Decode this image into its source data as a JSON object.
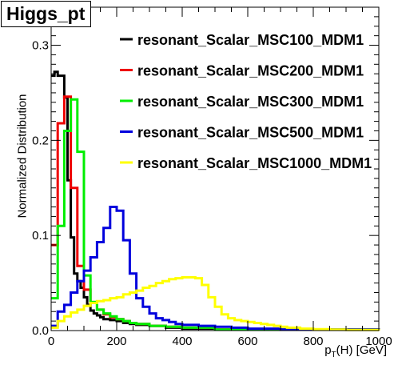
{
  "chart_data": {
    "type": "line",
    "title": "Higgs_pt",
    "xlabel": {
      "main": "p",
      "sub": "T",
      "rest": "(H) [GeV]"
    },
    "ylabel": "Normalized Distribution",
    "xlim": [
      0,
      1000
    ],
    "ylim": [
      0,
      0.34
    ],
    "x_ticks": [
      0,
      200,
      400,
      600,
      800,
      1000
    ],
    "y_ticks": [
      0.0,
      0.1,
      0.2,
      0.3
    ],
    "y_tick_labels": [
      "0.0",
      "0.1",
      "0.2",
      "0.3"
    ],
    "bin_width": 20,
    "legend_position": "top-right",
    "grid": false,
    "series": [
      {
        "name": "resonant_Scalar_MSC100_MDM1",
        "color": "#000000",
        "bins": [
          [
            0,
            0.268
          ],
          [
            10,
            0.272
          ],
          [
            20,
            0.268
          ],
          [
            40,
            0.245
          ],
          [
            50,
            0.158
          ],
          [
            60,
            0.098
          ],
          [
            70,
            0.06
          ],
          [
            80,
            0.052
          ],
          [
            90,
            0.045
          ],
          [
            100,
            0.035
          ],
          [
            110,
            0.027
          ],
          [
            120,
            0.021
          ],
          [
            130,
            0.018
          ],
          [
            140,
            0.016
          ],
          [
            150,
            0.014
          ],
          [
            160,
            0.012
          ],
          [
            180,
            0.011
          ],
          [
            200,
            0.01
          ],
          [
            220,
            0.008
          ],
          [
            240,
            0.007
          ],
          [
            260,
            0.006
          ],
          [
            300,
            0.005
          ],
          [
            350,
            0.003
          ],
          [
            400,
            0.002
          ],
          [
            500,
            0.001
          ],
          [
            1000,
            0.0
          ]
        ]
      },
      {
        "name": "resonant_Scalar_MSC200_MDM1",
        "color": "#ee0000",
        "bins": [
          [
            0,
            0.09
          ],
          [
            20,
            0.218
          ],
          [
            40,
            0.246
          ],
          [
            60,
            0.15
          ],
          [
            80,
            0.068
          ],
          [
            100,
            0.043
          ],
          [
            120,
            0.03
          ],
          [
            140,
            0.022
          ],
          [
            160,
            0.017
          ],
          [
            180,
            0.014
          ],
          [
            200,
            0.012
          ],
          [
            220,
            0.01
          ],
          [
            240,
            0.008
          ],
          [
            260,
            0.007
          ],
          [
            300,
            0.005
          ],
          [
            350,
            0.004
          ],
          [
            400,
            0.003
          ],
          [
            500,
            0.001
          ],
          [
            1000,
            0.0
          ]
        ]
      },
      {
        "name": "resonant_Scalar_MSC300_MDM1",
        "color": "#00ee00",
        "bins": [
          [
            0,
            0.034
          ],
          [
            20,
            0.11
          ],
          [
            40,
            0.21
          ],
          [
            60,
            0.243
          ],
          [
            80,
            0.188
          ],
          [
            100,
            0.058
          ],
          [
            120,
            0.03
          ],
          [
            140,
            0.022
          ],
          [
            160,
            0.018
          ],
          [
            180,
            0.015
          ],
          [
            200,
            0.012
          ],
          [
            220,
            0.01
          ],
          [
            240,
            0.008
          ],
          [
            260,
            0.007
          ],
          [
            300,
            0.005
          ],
          [
            350,
            0.004
          ],
          [
            400,
            0.003
          ],
          [
            500,
            0.001
          ],
          [
            1000,
            0.0
          ]
        ]
      },
      {
        "name": "resonant_Scalar_MSC500_MDM1",
        "color": "#0000dd",
        "bins": [
          [
            0,
            0.005
          ],
          [
            20,
            0.02
          ],
          [
            40,
            0.027
          ],
          [
            60,
            0.04
          ],
          [
            80,
            0.052
          ],
          [
            100,
            0.063
          ],
          [
            120,
            0.077
          ],
          [
            140,
            0.093
          ],
          [
            160,
            0.108
          ],
          [
            180,
            0.13
          ],
          [
            200,
            0.126
          ],
          [
            220,
            0.095
          ],
          [
            240,
            0.06
          ],
          [
            260,
            0.034
          ],
          [
            280,
            0.025
          ],
          [
            300,
            0.018
          ],
          [
            320,
            0.013
          ],
          [
            340,
            0.011
          ],
          [
            360,
            0.009
          ],
          [
            380,
            0.007
          ],
          [
            400,
            0.006
          ],
          [
            450,
            0.005
          ],
          [
            500,
            0.004
          ],
          [
            550,
            0.003
          ],
          [
            600,
            0.002
          ],
          [
            700,
            0.001
          ],
          [
            1000,
            0.0
          ]
        ]
      },
      {
        "name": "resonant_Scalar_MSC1000_MDM1",
        "color": "#ffff00",
        "bins": [
          [
            0,
            0.003
          ],
          [
            20,
            0.01
          ],
          [
            40,
            0.015
          ],
          [
            60,
            0.019
          ],
          [
            80,
            0.022
          ],
          [
            100,
            0.026
          ],
          [
            120,
            0.029
          ],
          [
            140,
            0.031
          ],
          [
            160,
            0.032
          ],
          [
            180,
            0.034
          ],
          [
            200,
            0.035
          ],
          [
            220,
            0.038
          ],
          [
            240,
            0.04
          ],
          [
            260,
            0.042
          ],
          [
            280,
            0.045
          ],
          [
            300,
            0.047
          ],
          [
            320,
            0.05
          ],
          [
            340,
            0.052
          ],
          [
            360,
            0.054
          ],
          [
            380,
            0.055
          ],
          [
            400,
            0.056
          ],
          [
            420,
            0.056
          ],
          [
            440,
            0.055
          ],
          [
            460,
            0.048
          ],
          [
            480,
            0.035
          ],
          [
            500,
            0.025
          ],
          [
            520,
            0.017
          ],
          [
            540,
            0.013
          ],
          [
            560,
            0.011
          ],
          [
            580,
            0.01
          ],
          [
            600,
            0.009
          ],
          [
            620,
            0.008
          ],
          [
            640,
            0.007
          ],
          [
            660,
            0.006
          ],
          [
            680,
            0.005
          ],
          [
            700,
            0.004
          ],
          [
            720,
            0.003
          ],
          [
            760,
            0.002
          ],
          [
            800,
            0.0015
          ],
          [
            850,
            0.001
          ],
          [
            900,
            0.0006
          ],
          [
            1000,
            0.0
          ]
        ]
      }
    ]
  }
}
